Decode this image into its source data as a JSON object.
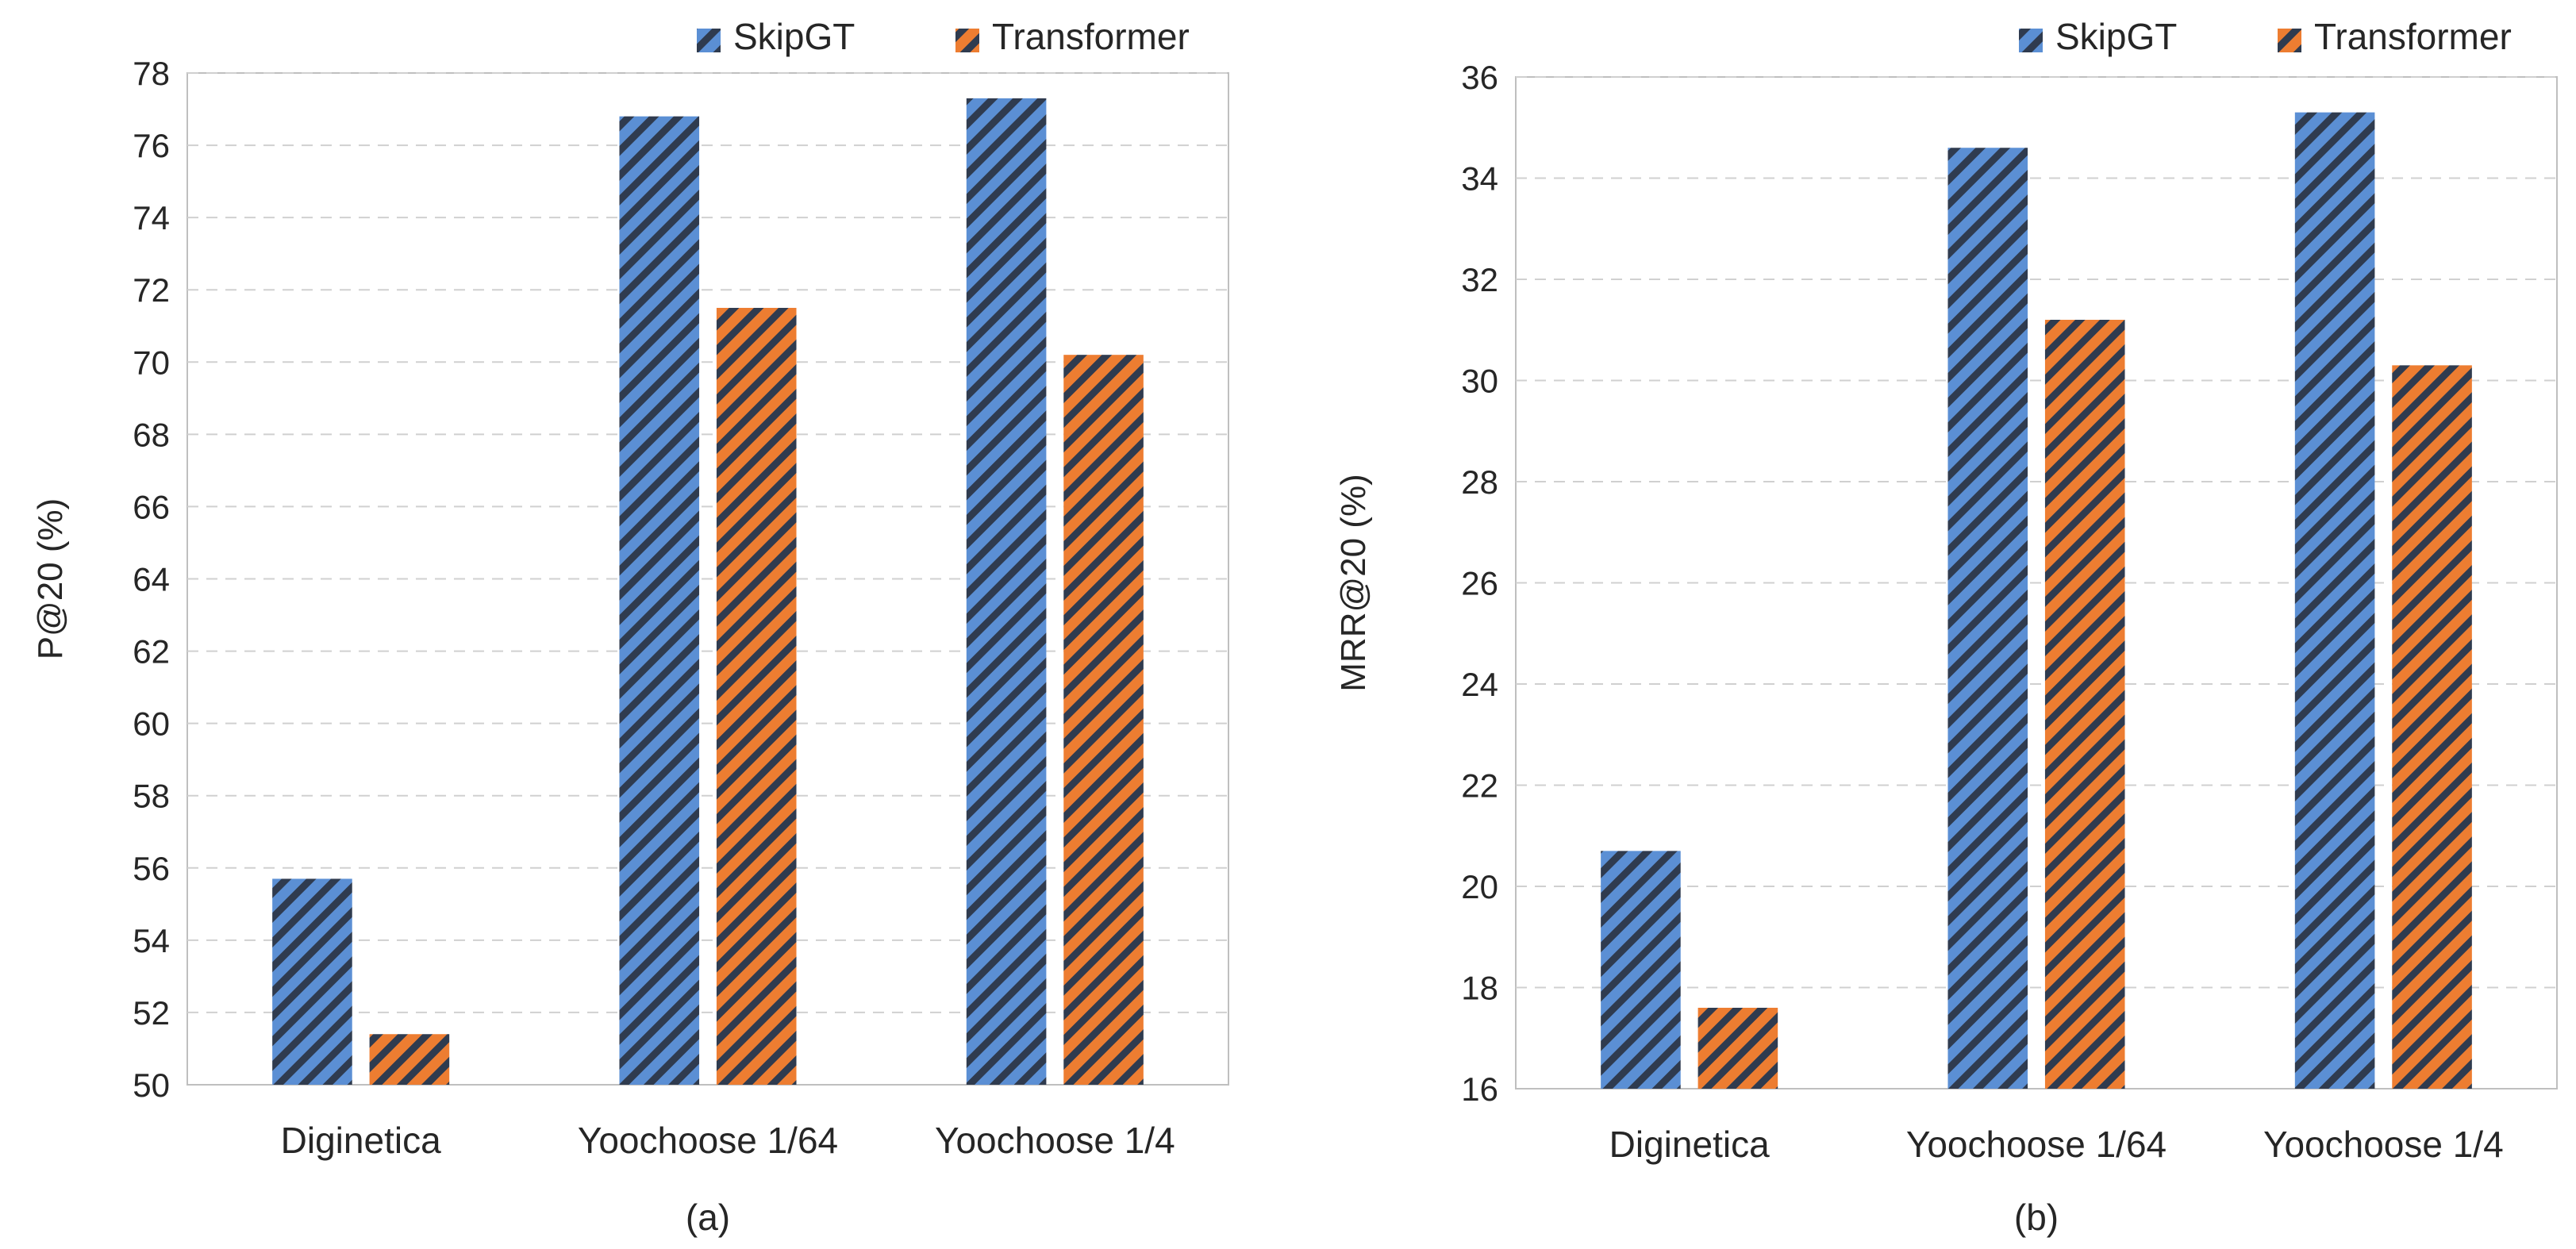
{
  "colors": {
    "skipgt": "#5b8fd4",
    "transformer": "#ed7d31",
    "hatch": "#2f3b4f",
    "grid": "#d0d0d0",
    "axis": "#bfbfbf"
  },
  "legend": {
    "skipgt_label": "SkipGT",
    "transformer_label": "Transformer"
  },
  "chart_data": [
    {
      "type": "bar",
      "caption": "(a)",
      "title": "",
      "xlabel": "",
      "ylabel": "P@20 (%)",
      "ylim": [
        50,
        78
      ],
      "yticks": [
        50,
        52,
        54,
        56,
        58,
        60,
        62,
        64,
        66,
        68,
        70,
        72,
        74,
        76,
        78
      ],
      "grid": true,
      "legend_position": "top-right",
      "categories": [
        "Diginetica",
        "Yoochoose 1/64",
        "Yoochoose 1/4"
      ],
      "series": [
        {
          "name": "SkipGT",
          "values": [
            55.7,
            76.8,
            77.3
          ]
        },
        {
          "name": "Transformer",
          "values": [
            51.4,
            71.5,
            70.2
          ]
        }
      ]
    },
    {
      "type": "bar",
      "caption": "(b)",
      "title": "",
      "xlabel": "",
      "ylabel": "MRR@20 (%)",
      "ylim": [
        16,
        36
      ],
      "yticks": [
        16,
        18,
        20,
        22,
        24,
        26,
        28,
        30,
        32,
        34,
        36
      ],
      "grid": true,
      "legend_position": "top-right",
      "categories": [
        "Diginetica",
        "Yoochoose 1/64",
        "Yoochoose 1/4"
      ],
      "series": [
        {
          "name": "SkipGT",
          "values": [
            20.7,
            34.6,
            35.3
          ]
        },
        {
          "name": "Transformer",
          "values": [
            17.6,
            31.2,
            30.3
          ]
        }
      ]
    }
  ]
}
